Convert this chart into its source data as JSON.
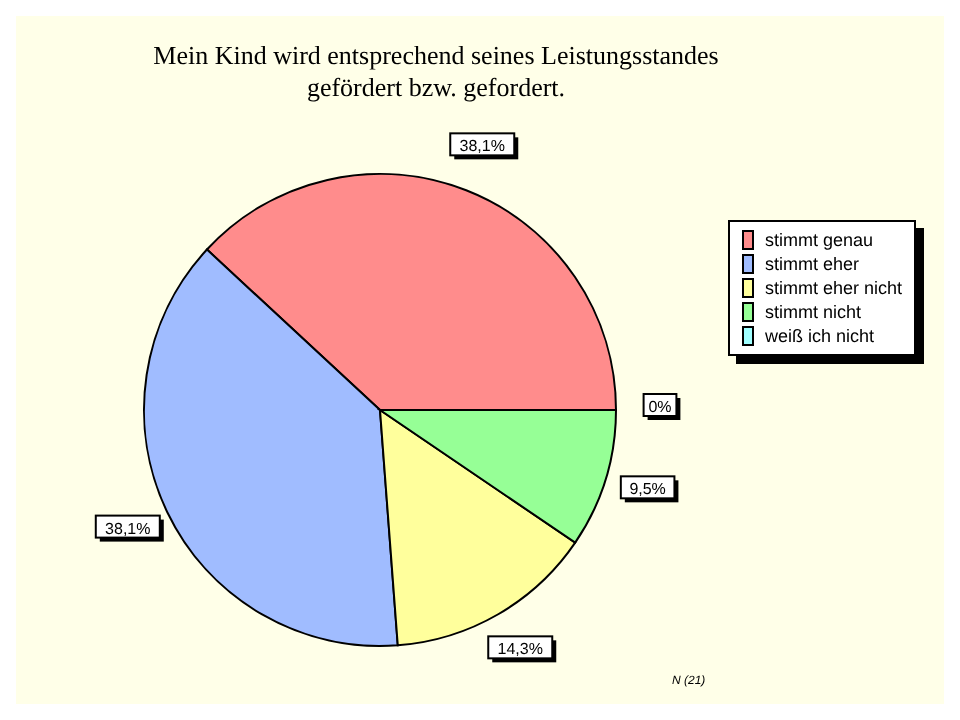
{
  "chart_data": {
    "type": "pie",
    "title": "Mein Kind wird entsprechend seines Leistungsstandes gefördert bzw. gefordert.",
    "categories": [
      "stimmt genau",
      "stimmt eher",
      "stimmt eher nicht",
      "stimmt nicht",
      "weiß ich nicht"
    ],
    "values": [
      38.1,
      38.1,
      14.3,
      9.5,
      0
    ],
    "value_labels": [
      "38,1%",
      "38,1%",
      "14,3%",
      "9,5%",
      "0%"
    ],
    "colors": [
      "#ff8c8c",
      "#a0bcff",
      "#ffff9c",
      "#96ff96",
      "#a0ffff"
    ],
    "legend": "right",
    "annotations": [
      "N (21)"
    ]
  }
}
